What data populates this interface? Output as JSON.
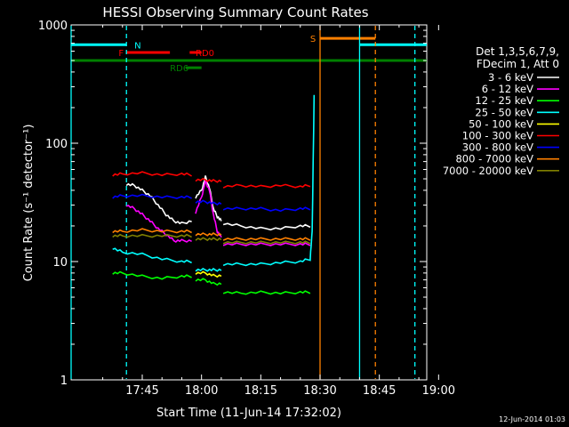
{
  "chart_data": {
    "type": "line",
    "title": "HESSI Observing Summary Count Rates",
    "xlabel": "Start Time (11-Jun-14 17:32:02)",
    "ylabel": "Count Rate (s⁻¹ detector⁻¹)",
    "ylog": true,
    "ylim": [
      1,
      1000
    ],
    "xlim_minutes": [
      -3,
      87
    ],
    "x_ticks": [
      "17:45",
      "18:00",
      "18:15",
      "18:30",
      "18:45",
      "19:00"
    ],
    "x_tick_minutes": [
      15,
      30,
      45,
      60,
      75,
      90
    ],
    "y_ticks": [
      "1",
      "10",
      "100",
      "1000"
    ],
    "y_tick_values": [
      1,
      10,
      100,
      1000
    ],
    "timestamp": "12-Jun-2014 01:03",
    "legend": {
      "header": [
        "Det 1,3,5,6,7,9,",
        "FDecim 1, Att 0"
      ],
      "position": "right"
    },
    "series": [
      {
        "name": "3 - 6 keV",
        "color": "#ffffff",
        "segments": [
          {
            "x": [
              11,
              13,
              15,
              17,
              19,
              21,
              23,
              25,
              27.5
            ],
            "y": [
              45,
              44,
              40,
              36,
              30,
              25,
              22,
              21,
              22
            ]
          },
          {
            "x": [
              28.5,
              30,
              31,
              32,
              33,
              34,
              35
            ],
            "y": [
              35,
              40,
              52,
              42,
              28,
              24,
              22
            ]
          },
          {
            "x": [
              35.5,
              40,
              45,
              50,
              55,
              57.5
            ],
            "y": [
              21,
              20,
              19,
              19,
              20,
              20
            ]
          }
        ]
      },
      {
        "name": "6 - 12 keV",
        "color": "#ff00ff",
        "segments": [
          {
            "x": [
              11,
              13,
              15,
              17,
              19,
              21,
              23,
              25,
              27.5
            ],
            "y": [
              30,
              28,
              25,
              22,
              19,
              17,
              15,
              15,
              15
            ]
          },
          {
            "x": [
              28.5,
              30,
              31,
              32,
              33,
              34,
              35
            ],
            "y": [
              26,
              35,
              48,
              40,
              25,
              18,
              16
            ]
          },
          {
            "x": [
              35.5,
              40,
              45,
              50,
              55,
              57.5
            ],
            "y": [
              14,
              14,
              14,
              14,
              14,
              14
            ]
          }
        ]
      },
      {
        "name": "12 - 25 keV",
        "color": "#00ff00",
        "segments": [
          {
            "x": [
              7.5,
              10,
              15,
              20,
              25,
              27.5
            ],
            "y": [
              8,
              8,
              7.5,
              7.2,
              7.5,
              7.5
            ]
          },
          {
            "x": [
              28.5,
              31,
              33,
              35
            ],
            "y": [
              7,
              7,
              6.5,
              6.5
            ]
          },
          {
            "x": [
              35.5,
              40,
              45,
              50,
              55,
              57.5
            ],
            "y": [
              5.5,
              5.4,
              5.5,
              5.4,
              5.5,
              5.5
            ]
          }
        ]
      },
      {
        "name": "25 - 50 keV",
        "color": "#00ffff",
        "segments": [
          {
            "x": [
              7.5,
              10,
              15,
              20,
              25,
              27.5
            ],
            "y": [
              13,
              12,
              11.5,
              10.5,
              10,
              10
            ]
          },
          {
            "x": [
              28.5,
              31,
              33,
              35
            ],
            "y": [
              8.5,
              8.5,
              8.5,
              8.5
            ]
          },
          {
            "x": [
              35.5,
              40,
              45,
              50,
              55,
              57.5,
              58,
              58.5
            ],
            "y": [
              9.5,
              9.5,
              9.5,
              9.8,
              10,
              10.5,
              18,
              250
            ]
          }
        ]
      },
      {
        "name": "50 - 100 keV",
        "color": "#ffff00",
        "segments": [
          {
            "x": [
              28.5,
              31,
              33,
              35
            ],
            "y": [
              8,
              8,
              7.6,
              7.6
            ]
          }
        ]
      },
      {
        "name": "100 - 300 keV",
        "color": "#ff0000",
        "segments": [
          {
            "x": [
              7.5,
              10,
              15,
              20,
              25,
              27.5
            ],
            "y": [
              54,
              55,
              56,
              54,
              55,
              54
            ]
          },
          {
            "x": [
              28.5,
              31,
              33,
              35
            ],
            "y": [
              49,
              49,
              48,
              48
            ]
          },
          {
            "x": [
              35.5,
              40,
              45,
              50,
              55,
              57.5
            ],
            "y": [
              43,
              44,
              43,
              44,
              43,
              44
            ]
          }
        ]
      },
      {
        "name": "300 - 800 keV",
        "color": "#0000ff",
        "segments": [
          {
            "x": [
              7.5,
              10,
              15,
              20,
              25,
              27.5
            ],
            "y": [
              35,
              36,
              36,
              35,
              35,
              35
            ]
          },
          {
            "x": [
              28.5,
              31,
              33,
              35
            ],
            "y": [
              32,
              32,
              31,
              31
            ]
          },
          {
            "x": [
              35.5,
              40,
              45,
              50,
              55,
              57.5
            ],
            "y": [
              28,
              28,
              28,
              27,
              28,
              28
            ]
          }
        ]
      },
      {
        "name": "800 - 7000 keV",
        "color": "#ff8000",
        "segments": [
          {
            "x": [
              7.5,
              10,
              15,
              20,
              25,
              27.5
            ],
            "y": [
              18,
              18,
              18.5,
              18,
              18,
              18
            ]
          },
          {
            "x": [
              28.5,
              31,
              33,
              35
            ],
            "y": [
              17,
              17,
              17,
              17
            ]
          },
          {
            "x": [
              35.5,
              40,
              45,
              50,
              55,
              57.5
            ],
            "y": [
              15.5,
              15.5,
              15.5,
              15.5,
              15.5,
              15.5
            ]
          }
        ]
      },
      {
        "name": "7000 - 20000 keV",
        "color": "#808000",
        "segments": [
          {
            "x": [
              7.5,
              10,
              15,
              20,
              25,
              27.5
            ],
            "y": [
              16.5,
              16.5,
              16.5,
              16.5,
              16.5,
              16.5
            ]
          },
          {
            "x": [
              28.5,
              31,
              33,
              35
            ],
            "y": [
              15.5,
              15.5,
              15.5,
              15.5
            ]
          },
          {
            "x": [
              35.5,
              40,
              45,
              50,
              55,
              57.5
            ],
            "y": [
              14.5,
              14.5,
              14.5,
              14.5,
              14.5,
              14.5
            ]
          }
        ]
      }
    ],
    "flags": [
      {
        "label": "N",
        "color": "#00ffff",
        "y": 680,
        "x": [
          -3,
          11
        ],
        "label_x": 13
      },
      {
        "label": "N",
        "color": "#00ffff",
        "y": 680,
        "x": [
          70,
          87
        ]
      },
      {
        "label": "F",
        "color": "#ff0000",
        "y": 585,
        "x": [
          11,
          22
        ],
        "label_x": 9
      },
      {
        "label": "RD0",
        "color": "#ff0000",
        "y": 585,
        "x": [
          27,
          30
        ],
        "label_x": 28.5
      },
      {
        "label": "RD6",
        "color": "#008000",
        "y": 435,
        "x": [
          26,
          30
        ],
        "label_x": 22
      },
      {
        "label": "S",
        "color": "#ff8000",
        "y": 770,
        "x": [
          60,
          74
        ],
        "label_x": 57.5
      },
      {
        "label": "",
        "color": "#008000",
        "y": 500,
        "x": [
          -3,
          87
        ]
      }
    ],
    "vlines": [
      {
        "x": -3,
        "color": "#00ffff",
        "style": "solid"
      },
      {
        "x": 11,
        "color": "#00ffff",
        "style": "dashed"
      },
      {
        "x": 60,
        "color": "#ff8000",
        "style": "solid"
      },
      {
        "x": 70,
        "color": "#00ffff",
        "style": "solid"
      },
      {
        "x": 74,
        "color": "#ff8000",
        "style": "dashed"
      },
      {
        "x": 84,
        "color": "#00ffff",
        "style": "dashed"
      }
    ]
  }
}
